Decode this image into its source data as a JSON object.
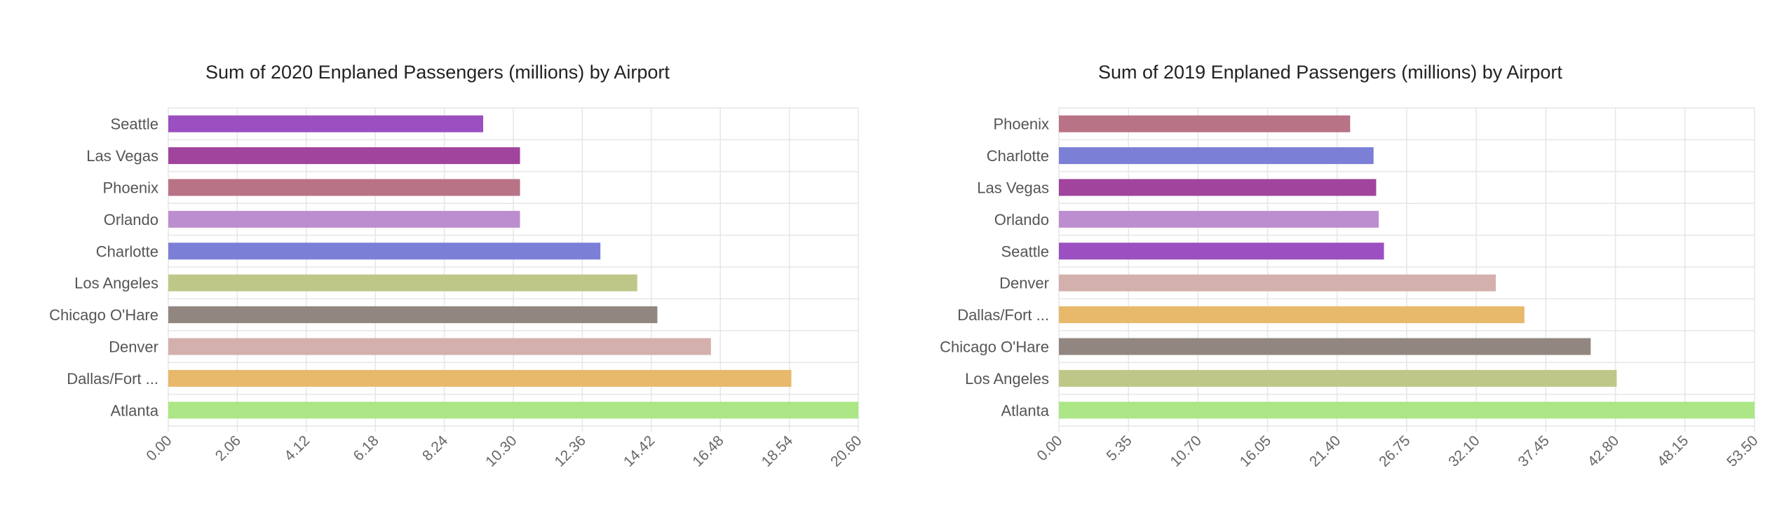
{
  "chart_data": [
    {
      "type": "bar",
      "orientation": "horizontal",
      "title": "Sum of 2020 Enplaned Passengers (millions) by Airport",
      "categories": [
        "Seattle",
        "Las Vegas",
        "Phoenix",
        "Orlando",
        "Charlotte",
        "Los Angeles",
        "Chicago O'Hare",
        "Denver",
        "Dallas/Fort ...",
        "Atlanta"
      ],
      "values": [
        9.4,
        10.5,
        10.5,
        10.5,
        12.9,
        14.0,
        14.6,
        16.2,
        18.6,
        20.6
      ],
      "colors": [
        "#9b4fc0",
        "#a0449e",
        "#b97386",
        "#bd8ecf",
        "#7b7fd6",
        "#bfc788",
        "#918680",
        "#d4b0ad",
        "#e8b86b",
        "#ace686"
      ],
      "xlim": [
        0,
        20.6
      ],
      "xticks": [
        "0.00",
        "2.06",
        "4.12",
        "6.18",
        "8.24",
        "10.30",
        "12.36",
        "14.42",
        "16.48",
        "18.54",
        "20.60"
      ],
      "xlabel": "",
      "ylabel": "",
      "grid": true
    },
    {
      "type": "bar",
      "orientation": "horizontal",
      "title": "Sum of 2019 Enplaned Passengers (millions) by Airport",
      "categories": [
        "Phoenix",
        "Charlotte",
        "Las Vegas",
        "Orlando",
        "Seattle",
        "Denver",
        "Dallas/Fort ...",
        "Chicago O'Hare",
        "Los Angeles",
        "Atlanta"
      ],
      "values": [
        22.4,
        24.2,
        24.4,
        24.6,
        25.0,
        33.6,
        35.8,
        40.9,
        42.9,
        53.5
      ],
      "colors": [
        "#b97386",
        "#7b7fd6",
        "#a0449e",
        "#bd8ecf",
        "#9b4fc0",
        "#d4b0ad",
        "#e8b86b",
        "#918680",
        "#bfc788",
        "#ace686"
      ],
      "xlim": [
        0,
        53.5
      ],
      "xticks": [
        "0.00",
        "5.35",
        "10.70",
        "16.05",
        "21.40",
        "26.75",
        "32.10",
        "37.45",
        "42.80",
        "48.15",
        "53.50"
      ],
      "xlabel": "",
      "ylabel": "",
      "grid": true
    }
  ]
}
